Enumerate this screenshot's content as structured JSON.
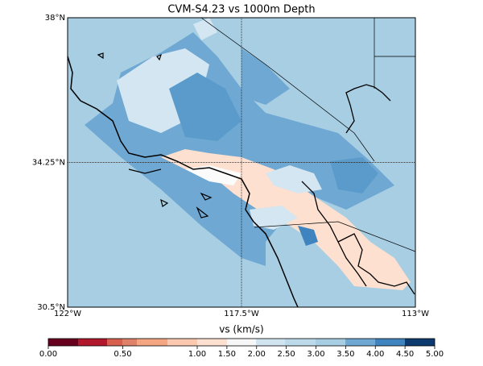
{
  "map": {
    "title": "CVM-S4.23 vs 1000m Depth",
    "lat_ticks": [
      {
        "value": 38,
        "label": "38°N"
      },
      {
        "value": 34.25,
        "label": "34.25°N"
      },
      {
        "value": 30.5,
        "label": "30.5°N"
      }
    ],
    "lon_ticks": [
      {
        "value": -122,
        "label": "122°W"
      },
      {
        "value": -117.5,
        "label": "117.5°W"
      },
      {
        "value": -113,
        "label": "113°W"
      }
    ],
    "colorbar": {
      "label": "vs (km/s)",
      "ticks": [
        {
          "value": 0,
          "label": "0.00"
        },
        {
          "value": 0.5,
          "label": "0.50"
        },
        {
          "value": 1,
          "label": "1.00"
        },
        {
          "value": 1.5,
          "label": "1.50"
        },
        {
          "value": 2,
          "label": "2.00"
        },
        {
          "value": 2.5,
          "label": "2.50"
        },
        {
          "value": 3,
          "label": "3.00"
        },
        {
          "value": 3.5,
          "label": "3.50"
        },
        {
          "value": 4,
          "label": "4.00"
        },
        {
          "value": 4.5,
          "label": "4.50"
        },
        {
          "value": 5,
          "label": "5.00"
        }
      ]
    }
  }
}
